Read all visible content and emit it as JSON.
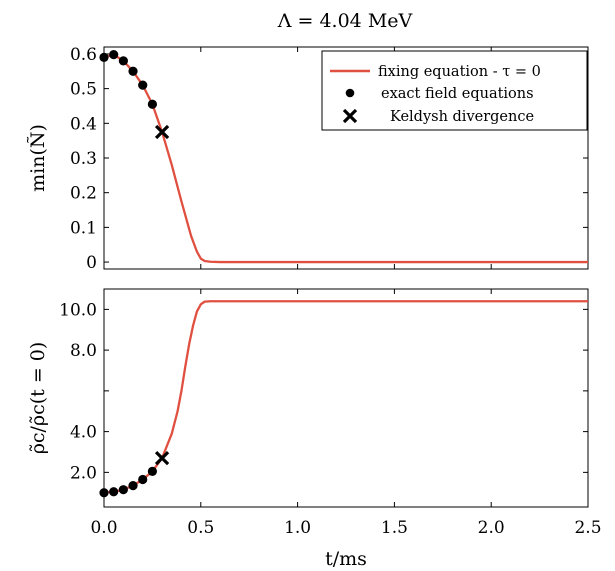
{
  "title": "Λ = 4.04 MeV",
  "colors": {
    "curve": "#e05040",
    "points": "#000000"
  },
  "chart_data": [
    {
      "type": "line",
      "ylabel": "min(Ñ)",
      "xlim": [
        0,
        2.5
      ],
      "ylim": [
        -0.02,
        0.62
      ],
      "yticks": [
        0,
        0.1,
        0.2,
        0.3,
        0.4,
        0.5,
        0.6
      ],
      "ytick_labels": [
        "0",
        "0.1",
        "0.2",
        "0.3",
        "0.4",
        "0.5",
        "0.6"
      ],
      "legend_position": "top-right",
      "legend": [
        {
          "key": "curve",
          "label": "fixing equation - τ = 0"
        },
        {
          "key": "points",
          "label": "exact field equations"
        },
        {
          "key": "cross",
          "label": "Keldysh divergence"
        }
      ],
      "series": [
        {
          "name": "fixing equation - τ = 0",
          "kind": "line",
          "x": [
            0,
            0.05,
            0.1,
            0.15,
            0.2,
            0.25,
            0.3,
            0.35,
            0.4,
            0.45,
            0.48,
            0.5,
            0.52,
            0.55,
            0.6,
            0.8,
            1.0,
            1.5,
            2.0,
            2.5
          ],
          "y": [
            0.59,
            0.598,
            0.58,
            0.55,
            0.51,
            0.455,
            0.375,
            0.28,
            0.175,
            0.075,
            0.03,
            0.01,
            0.003,
            0.001,
            0,
            0,
            0,
            0,
            0,
            0
          ]
        },
        {
          "name": "exact field equations",
          "kind": "points",
          "x": [
            0,
            0.05,
            0.1,
            0.15,
            0.2,
            0.25
          ],
          "y": [
            0.59,
            0.598,
            0.58,
            0.55,
            0.51,
            0.455
          ]
        },
        {
          "name": "Keldysh divergence",
          "kind": "cross",
          "x": [
            0.3
          ],
          "y": [
            0.375
          ]
        }
      ]
    },
    {
      "type": "line",
      "ylabel": "ρ̃c/ρ̃c(t = 0)",
      "xlabel": "t/ms",
      "xlim": [
        0,
        2.5
      ],
      "ylim": [
        0.3,
        11.0
      ],
      "yticks": [
        2,
        4,
        6,
        8,
        10
      ],
      "ytick_labels": [
        "2.0",
        "4.0",
        "",
        "8.0",
        "10.0"
      ],
      "xticks": [
        0,
        0.5,
        1.0,
        1.5,
        2.0,
        2.5
      ],
      "xtick_labels": [
        "0.0",
        "0.5",
        "1.0",
        "1.5",
        "2.0",
        "2.5"
      ],
      "series": [
        {
          "name": "fixing equation - τ = 0",
          "kind": "line",
          "x": [
            0,
            0.05,
            0.1,
            0.15,
            0.2,
            0.25,
            0.3,
            0.35,
            0.38,
            0.4,
            0.42,
            0.44,
            0.46,
            0.48,
            0.5,
            0.52,
            0.55,
            0.6,
            0.8,
            1.0,
            1.5,
            2.0,
            2.5
          ],
          "y": [
            1.0,
            1.05,
            1.15,
            1.35,
            1.65,
            2.05,
            2.7,
            3.9,
            5.0,
            6.0,
            7.2,
            8.3,
            9.2,
            9.9,
            10.25,
            10.38,
            10.4,
            10.4,
            10.4,
            10.4,
            10.4,
            10.4,
            10.4
          ]
        },
        {
          "name": "exact field equations",
          "kind": "points",
          "x": [
            0,
            0.05,
            0.1,
            0.15,
            0.2,
            0.25
          ],
          "y": [
            1.0,
            1.05,
            1.15,
            1.35,
            1.65,
            2.05
          ]
        },
        {
          "name": "Keldysh divergence",
          "kind": "cross",
          "x": [
            0.3
          ],
          "y": [
            2.7
          ]
        }
      ]
    }
  ]
}
